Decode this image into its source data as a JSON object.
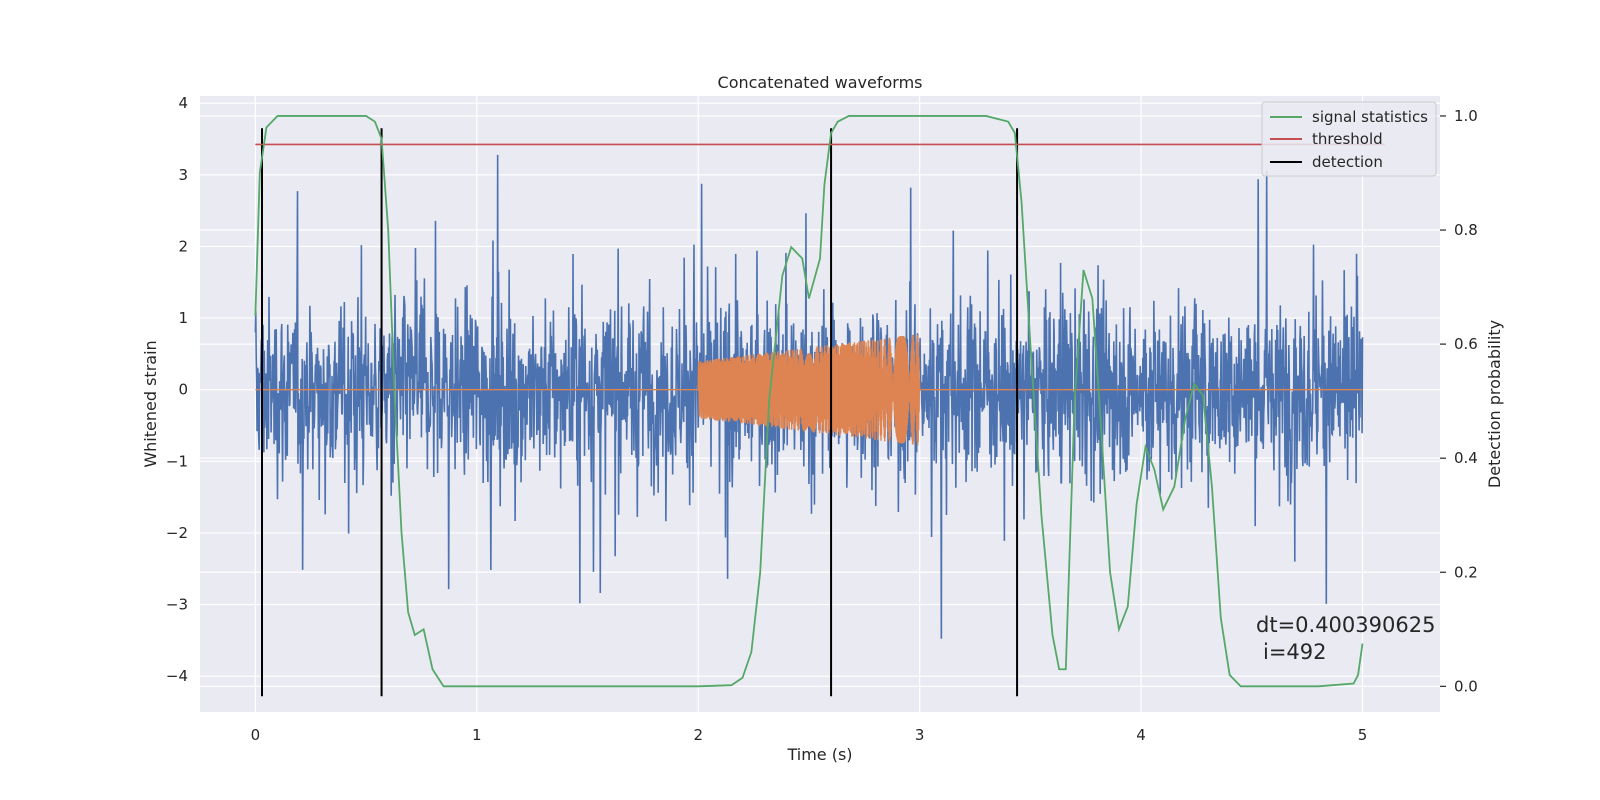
{
  "chart_data": {
    "type": "line",
    "title": "Concatenated waveforms",
    "xlabel": "Time (s)",
    "ylabel": "Whitened strain",
    "y2label": "Detection probability",
    "xlim": [
      -0.25,
      5.35
    ],
    "ylim": [
      -4.5,
      4.1
    ],
    "y2lim": [
      -0.045,
      1.035
    ],
    "x_ticks": [
      0,
      1,
      2,
      3,
      4,
      5
    ],
    "y_ticks": [
      -4,
      -3,
      -2,
      -1,
      0,
      1,
      2,
      3,
      4
    ],
    "y2_ticks": [
      0.0,
      0.2,
      0.4,
      0.6,
      0.8,
      1.0
    ],
    "grid": true,
    "background": "#EAEAF2",
    "legend_position": "top-right",
    "legend": [
      {
        "label": "signal statistics",
        "color": "#55A868"
      },
      {
        "label": "threshold",
        "color": "#C44E52"
      },
      {
        "label": "detection",
        "color": "#000000"
      }
    ],
    "series": [
      {
        "name": "signal statistics",
        "axis": "right",
        "color": "#55A868",
        "x": [
          0.0,
          0.02,
          0.05,
          0.1,
          0.15,
          0.3,
          0.5,
          0.54,
          0.57,
          0.6,
          0.63,
          0.66,
          0.69,
          0.72,
          0.76,
          0.8,
          0.85,
          1.0,
          1.5,
          2.0,
          2.15,
          2.2,
          2.24,
          2.28,
          2.32,
          2.38,
          2.42,
          2.47,
          2.5,
          2.55,
          2.57,
          2.6,
          2.63,
          2.68,
          2.75,
          3.0,
          3.3,
          3.4,
          3.43,
          3.46,
          3.5,
          3.55,
          3.6,
          3.63,
          3.66,
          3.7,
          3.74,
          3.78,
          3.82,
          3.86,
          3.9,
          3.94,
          3.98,
          4.02,
          4.06,
          4.1,
          4.15,
          4.2,
          4.24,
          4.28,
          4.32,
          4.36,
          4.4,
          4.45,
          4.6,
          4.8,
          4.96,
          4.98,
          5.0
        ],
        "y": [
          0.65,
          0.9,
          0.98,
          1.0,
          1.0,
          1.0,
          1.0,
          0.99,
          0.96,
          0.8,
          0.5,
          0.27,
          0.13,
          0.09,
          0.1,
          0.03,
          0.0,
          0.0,
          0.0,
          0.0,
          0.002,
          0.015,
          0.06,
          0.2,
          0.5,
          0.72,
          0.77,
          0.75,
          0.68,
          0.75,
          0.88,
          0.97,
          0.99,
          1.0,
          1.0,
          1.0,
          1.0,
          0.99,
          0.97,
          0.85,
          0.6,
          0.3,
          0.09,
          0.03,
          0.03,
          0.5,
          0.73,
          0.68,
          0.45,
          0.2,
          0.1,
          0.14,
          0.32,
          0.42,
          0.38,
          0.31,
          0.35,
          0.47,
          0.53,
          0.51,
          0.35,
          0.12,
          0.02,
          0.0,
          0.0,
          0.0,
          0.005,
          0.02,
          0.075
        ]
      },
      {
        "name": "threshold",
        "axis": "right",
        "color": "#C44E52",
        "x": [
          0.0,
          5.1
        ],
        "y": [
          0.95,
          0.95
        ]
      },
      {
        "name": "whitened strain",
        "axis": "left",
        "color": "#4C72B0",
        "x_range": [
          0.0,
          5.0
        ],
        "envelope": {
          "typical": 1.3,
          "max": 3.6
        }
      },
      {
        "name": "injected waveform",
        "axis": "left",
        "color": "#DD8452",
        "x_range": [
          0.0,
          5.0
        ],
        "chirp": {
          "start": 2.0,
          "end": 3.0,
          "amp_start": 0.4,
          "amp_end": 0.78
        }
      },
      {
        "name": "detection",
        "axis": "left",
        "color": "#000000",
        "x": [
          0.03,
          0.57,
          2.6,
          3.44
        ],
        "y_range": [
          -4.28,
          3.65
        ]
      }
    ],
    "annotation": {
      "line1": "dt=0.400390625",
      "line2": "i=492"
    }
  }
}
